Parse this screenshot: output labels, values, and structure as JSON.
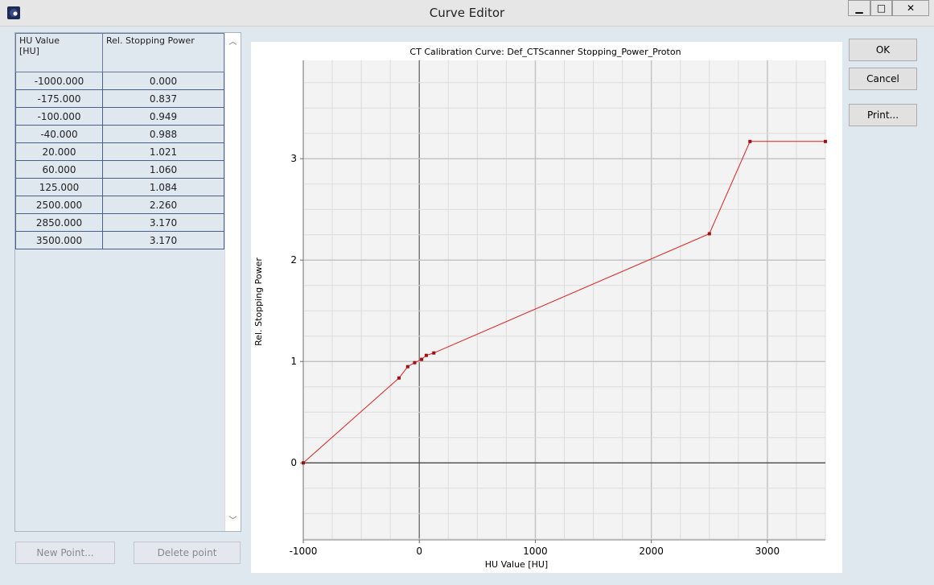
{
  "window": {
    "title": "Curve Editor",
    "controls": [
      "▁",
      "□",
      "✕"
    ]
  },
  "table": {
    "headers": [
      "HU Value\n[HU]",
      "Rel. Stopping Power"
    ],
    "header_hu": "HU Value",
    "header_hu_unit": "[HU]",
    "header_sp": "Rel. Stopping Power",
    "rows": [
      [
        "-1000.000",
        "0.000"
      ],
      [
        "-175.000",
        "0.837"
      ],
      [
        "-100.000",
        "0.949"
      ],
      [
        "-40.000",
        "0.988"
      ],
      [
        "20.000",
        "1.021"
      ],
      [
        "60.000",
        "1.060"
      ],
      [
        "125.000",
        "1.084"
      ],
      [
        "2500.000",
        "2.260"
      ],
      [
        "2850.000",
        "3.170"
      ],
      [
        "3500.000",
        "3.170"
      ]
    ]
  },
  "buttons": {
    "new_point": "New Point...",
    "delete_point": "Delete point",
    "ok": "OK",
    "cancel": "Cancel",
    "print": "Print..."
  },
  "chart_data": {
    "type": "line",
    "title": "CT Calibration Curve: Def_CTScanner Stopping_Power_Proton",
    "xlabel": "HU Value [HU]",
    "ylabel": "Rel. Stopping Power",
    "xlim": [
      -1000,
      3500
    ],
    "ylim": [
      -0.76,
      3.97
    ],
    "xticks": [
      -1000,
      0,
      1000,
      2000,
      3000
    ],
    "yticks": [
      0,
      1,
      2,
      3
    ],
    "grid": true,
    "line_color": "#e02020",
    "x": [
      -1000,
      -175,
      -100,
      -40,
      20,
      60,
      125,
      2500,
      2850,
      3500
    ],
    "y": [
      0,
      0.837,
      0.949,
      0.988,
      1.021,
      1.06,
      1.084,
      2.26,
      3.17,
      3.17
    ]
  }
}
